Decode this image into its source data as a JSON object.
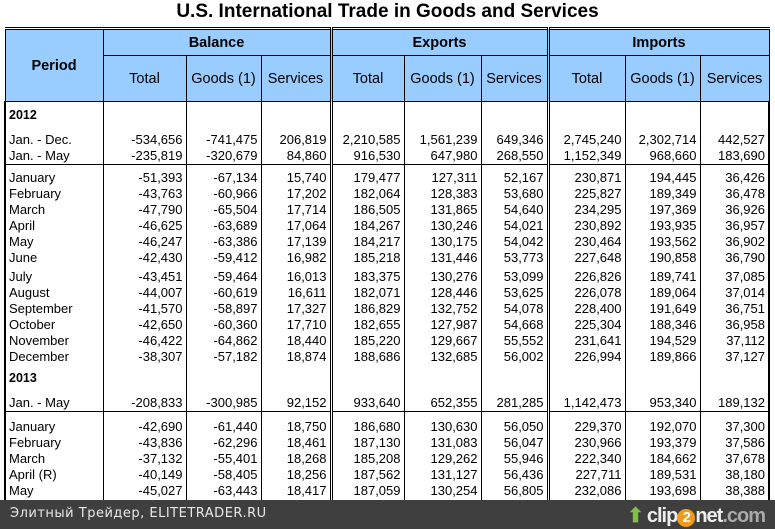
{
  "title": "U.S. International Trade in Goods and Services",
  "header": {
    "period": "Period",
    "groups": [
      "Balance",
      "Exports",
      "Imports"
    ],
    "subs": [
      "Total",
      "Goods (1)",
      "Services"
    ]
  },
  "rows": [
    {
      "type": "year",
      "label": "2012"
    },
    {
      "type": "sp",
      "h": 5
    },
    {
      "type": "d",
      "label": "Jan. - Dec.",
      "v": [
        "-534,656",
        "-741,475",
        "206,819",
        "2,210,585",
        "1,561,239",
        "649,346",
        "2,745,240",
        "2,302,714",
        "442,527"
      ]
    },
    {
      "type": "d",
      "sep": true,
      "label": "Jan. - May",
      "v": [
        "-235,819",
        "-320,679",
        "84,860",
        "916,530",
        "647,980",
        "268,550",
        "1,152,349",
        "968,660",
        "183,690"
      ]
    },
    {
      "type": "sp",
      "h": 5
    },
    {
      "type": "d",
      "label": "January",
      "v": [
        "-51,393",
        "-67,134",
        "15,740",
        "179,477",
        "127,311",
        "52,167",
        "230,871",
        "194,445",
        "36,426"
      ]
    },
    {
      "type": "d",
      "label": "February",
      "v": [
        "-43,763",
        "-60,966",
        "17,202",
        "182,064",
        "128,383",
        "53,680",
        "225,827",
        "189,349",
        "36,478"
      ]
    },
    {
      "type": "d",
      "label": "March",
      "v": [
        "-47,790",
        "-65,504",
        "17,714",
        "186,505",
        "131,865",
        "54,640",
        "234,295",
        "197,369",
        "36,926"
      ]
    },
    {
      "type": "d",
      "label": "April",
      "v": [
        "-46,625",
        "-63,689",
        "17,064",
        "184,267",
        "130,246",
        "54,021",
        "230,892",
        "193,935",
        "36,957"
      ]
    },
    {
      "type": "d",
      "label": "May",
      "v": [
        "-46,247",
        "-63,386",
        "17,139",
        "184,217",
        "130,175",
        "54,042",
        "230,464",
        "193,562",
        "36,902"
      ]
    },
    {
      "type": "d",
      "label": "June",
      "v": [
        "-42,430",
        "-59,412",
        "16,982",
        "185,218",
        "131,446",
        "53,773",
        "227,648",
        "190,858",
        "36,790"
      ]
    },
    {
      "type": "sp",
      "h": 3
    },
    {
      "type": "d",
      "label": "July",
      "v": [
        "-43,451",
        "-59,464",
        "16,013",
        "183,375",
        "130,276",
        "53,099",
        "226,826",
        "189,741",
        "37,085"
      ]
    },
    {
      "type": "d",
      "label": "August",
      "v": [
        "-44,007",
        "-60,619",
        "16,611",
        "182,071",
        "128,446",
        "53,625",
        "226,078",
        "189,064",
        "37,014"
      ]
    },
    {
      "type": "d",
      "label": "September",
      "v": [
        "-41,570",
        "-58,897",
        "17,327",
        "186,829",
        "132,752",
        "54,078",
        "228,400",
        "191,649",
        "36,751"
      ]
    },
    {
      "type": "d",
      "label": "October",
      "v": [
        "-42,650",
        "-60,360",
        "17,710",
        "182,655",
        "127,987",
        "54,668",
        "225,304",
        "188,346",
        "36,958"
      ]
    },
    {
      "type": "d",
      "label": "November",
      "v": [
        "-46,422",
        "-64,862",
        "18,440",
        "185,220",
        "129,667",
        "55,552",
        "231,641",
        "194,529",
        "37,112"
      ]
    },
    {
      "type": "d",
      "label": "December",
      "v": [
        "-38,307",
        "-57,182",
        "18,874",
        "188,686",
        "132,685",
        "56,002",
        "226,994",
        "189,866",
        "37,127"
      ]
    },
    {
      "type": "year",
      "label": "2013"
    },
    {
      "type": "sp",
      "h": 5
    },
    {
      "type": "d",
      "sep": true,
      "label": "Jan. - May",
      "v": [
        "-208,833",
        "-300,985",
        "92,152",
        "933,640",
        "652,355",
        "281,285",
        "1,142,473",
        "953,340",
        "189,132"
      ]
    },
    {
      "type": "sp",
      "h": 7
    },
    {
      "type": "d",
      "label": "January",
      "v": [
        "-42,690",
        "-61,440",
        "18,750",
        "186,680",
        "130,630",
        "56,050",
        "229,370",
        "192,070",
        "37,300"
      ]
    },
    {
      "type": "d",
      "label": "February",
      "v": [
        "-43,836",
        "-62,296",
        "18,461",
        "187,130",
        "131,083",
        "56,047",
        "230,966",
        "193,379",
        "37,586"
      ]
    },
    {
      "type": "d",
      "label": "March",
      "v": [
        "-37,132",
        "-55,401",
        "18,268",
        "185,208",
        "129,262",
        "55,946",
        "222,340",
        "184,662",
        "37,678"
      ]
    },
    {
      "type": "d",
      "label": "April (R)",
      "v": [
        "-40,149",
        "-58,405",
        "18,256",
        "187,562",
        "131,127",
        "56,436",
        "227,711",
        "189,531",
        "38,180"
      ]
    },
    {
      "type": "d",
      "label": "May",
      "v": [
        "-45,027",
        "-63,443",
        "18,417",
        "187,059",
        "130,254",
        "56,805",
        "232,086",
        "193,698",
        "38,388"
      ]
    },
    {
      "type": "sp",
      "h": 2
    }
  ],
  "footer": {
    "text": "Элитный Трейдер, ELITETRADER.RU",
    "logo": "clip2net.com"
  }
}
